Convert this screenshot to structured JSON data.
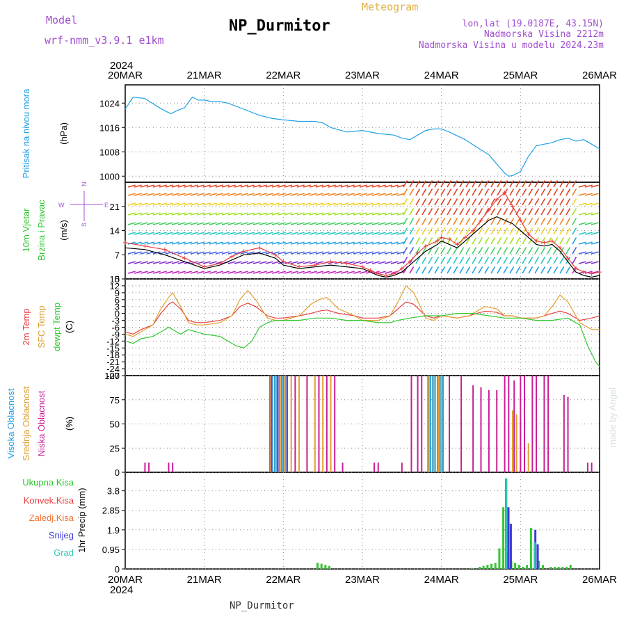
{
  "header": {
    "model_label": "Model",
    "model_name": "wrf-nmm_v3.9.1 e1km",
    "title": "NP_Durmitor",
    "product": "Meteogram",
    "lonlat": "lon,lat (19.0187E, 43.15N)",
    "elevation": "Nadmorska Visina 2212m",
    "model_elevation": "Nadmorska Visina u modelu 2024.23m"
  },
  "footer": {
    "station": "NP_Durmitor",
    "credit": "made by Angel"
  },
  "colors": {
    "pressure": "#1ea0e6",
    "temp2m": "#e84040",
    "sfc": "#e0a030",
    "dewpt": "#30c830",
    "high_cloud": "#1ea0e6",
    "mid_cloud": "#e0a030",
    "low_cloud": "#c81e96",
    "purple": "#a050d0",
    "total_precip": "#30c830",
    "conv_precip": "#e84040",
    "frozen_precip": "#f07030",
    "snow": "#3c3cd8",
    "hail": "#30c8b4",
    "wind_level_speed": "#000000",
    "wind_gust": "#e84040"
  },
  "chart_data": {
    "time_axis": {
      "year": "2024",
      "tick_labels": [
        "20MAR",
        "21MAR",
        "22MAR",
        "23MAR",
        "24MAR",
        "25MAR",
        "26MAR"
      ],
      "range_days": [
        0,
        6
      ]
    },
    "panels": [
      {
        "id": "pressure",
        "type": "line",
        "ylabel": "Pritisak na nivou mora",
        "unit": "(hPa)",
        "ylim": [
          998,
          1030
        ],
        "yticks": [
          "1000",
          "1008",
          "1016",
          "1024"
        ],
        "grid": true,
        "series": [
          {
            "name": "Pritisak na nivou mora",
            "x": [
              0,
              0.1,
              0.25,
              0.4,
              0.5,
              0.58,
              0.65,
              0.75,
              0.85,
              0.92,
              1.0,
              1.1,
              1.2,
              1.3,
              1.5,
              1.7,
              1.85,
              2.0,
              2.2,
              2.4,
              2.5,
              2.6,
              2.8,
              3.0,
              3.2,
              3.4,
              3.5,
              3.6,
              3.7,
              3.8,
              3.9,
              4.0,
              4.1,
              4.3,
              4.45,
              4.6,
              4.7,
              4.8,
              4.85,
              4.9,
              5.0,
              5.1,
              5.2,
              5.3,
              5.4,
              5.5,
              5.6,
              5.7,
              5.8,
              5.9,
              6.0
            ],
            "values": [
              1022,
              1026,
              1025.5,
              1023,
              1021.5,
              1020.5,
              1021.5,
              1022.5,
              1026,
              1025,
              1025,
              1024.5,
              1024.5,
              1024,
              1022,
              1020,
              1019,
              1018.5,
              1018,
              1018,
              1017.5,
              1016,
              1014.5,
              1015,
              1014,
              1013.5,
              1012.5,
              1012,
              1013.5,
              1015,
              1015.5,
              1015.5,
              1014.5,
              1012,
              1009.5,
              1007,
              1004,
              1001,
              1000,
              1000.2,
              1001.5,
              1006.5,
              1010,
              1010.5,
              1011,
              1012,
              1012.5,
              1011.5,
              1012,
              1010.5,
              1009
            ]
          }
        ]
      },
      {
        "id": "wind",
        "type": "line",
        "ylabel_1": "10m Vjetar",
        "ylabel_2": "Brzina i Pravac",
        "unit": "(m/s)",
        "compass_labels": [
          "N",
          "W",
          "E",
          "S"
        ],
        "ylim": [
          0,
          28
        ],
        "yticks": [
          "0",
          "7",
          "14",
          "21"
        ],
        "grid": true,
        "series": [
          {
            "x": [
              0,
              0.25,
              0.5,
              0.75,
              1.0,
              1.2,
              1.35,
              1.5,
              1.7,
              1.9,
              2.0,
              2.2,
              2.4,
              2.6,
              2.8,
              3.0,
              3.1,
              3.2,
              3.3,
              3.4,
              3.5,
              3.6,
              3.7,
              3.8,
              3.95,
              4.0,
              4.1,
              4.2,
              4.3,
              4.4,
              4.5,
              4.6,
              4.7,
              4.8,
              4.9,
              5.0,
              5.1,
              5.2,
              5.3,
              5.4,
              5.5,
              5.6,
              5.7,
              5.8,
              5.9,
              6.0
            ],
            "values": [
              9,
              8.5,
              7,
              5,
              3,
              4,
              5.5,
              7,
              7.5,
              6,
              4,
              3,
              3.5,
              4,
              3.5,
              3,
              2,
              1,
              0.5,
              1,
              2,
              4,
              6,
              8,
              10,
              11,
              10,
              9,
              11,
              13,
              15,
              17,
              18,
              17,
              16,
              14,
              12,
              10,
              9.5,
              10,
              8,
              5,
              2,
              1,
              0.5,
              1
            ]
          },
          {
            "x": [
              0,
              0.25,
              0.5,
              0.75,
              1.0,
              1.2,
              1.35,
              1.5,
              1.7,
              1.9,
              2.0,
              2.2,
              2.4,
              2.6,
              2.8,
              3.0,
              3.1,
              3.2,
              3.3,
              3.4,
              3.5,
              3.6,
              3.7,
              3.8,
              3.95,
              4.0,
              4.1,
              4.2,
              4.3,
              4.4,
              4.5,
              4.6,
              4.7,
              4.8,
              4.9,
              5.0,
              5.1,
              5.2,
              5.3,
              5.4,
              5.5,
              5.6,
              5.7,
              5.8,
              5.9,
              6.0
            ],
            "values": [
              10.5,
              9.5,
              8.5,
              6,
              3.5,
              4.5,
              6.5,
              8,
              9,
              7,
              5,
              3.5,
              4,
              5,
              4.5,
              3.5,
              2.5,
              1.5,
              1,
              1.5,
              3,
              5,
              7.5,
              9.5,
              11,
              12,
              11.5,
              10,
              12,
              14,
              17,
              20,
              23,
              25,
              21,
              17,
              13,
              11,
              10.5,
              11,
              9,
              6,
              3,
              2,
              1.5,
              2
            ]
          }
        ]
      },
      {
        "id": "temperature",
        "type": "line",
        "ylabel_1": "2m Temp",
        "ylabel_2": "SFC Temp",
        "ylabel_3": "dewpt Temp",
        "unit": "(C)",
        "ylim": [
          -27,
          15
        ],
        "yticks": [
          "15",
          "12",
          "9",
          "6",
          "3",
          "0",
          "-3",
          "-6",
          "-9",
          "-12",
          "-15",
          "-18",
          "-21",
          "-24",
          "-27"
        ],
        "grid": true,
        "series": [
          {
            "name": "2m Temp",
            "x": [
              0,
              0.1,
              0.2,
              0.35,
              0.45,
              0.55,
              0.6,
              0.7,
              0.8,
              0.9,
              1.0,
              1.2,
              1.35,
              1.45,
              1.55,
              1.65,
              1.8,
              1.9,
              2.0,
              2.2,
              2.35,
              2.45,
              2.55,
              2.7,
              2.9,
              3.0,
              3.2,
              3.35,
              3.45,
              3.55,
              3.65,
              3.8,
              3.9,
              4.0,
              4.2,
              4.35,
              4.45,
              4.55,
              4.7,
              4.8,
              4.9,
              5.0,
              5.2,
              5.3,
              5.4,
              5.5,
              5.6,
              5.75,
              5.9,
              6.0
            ],
            "values": [
              -8,
              -9,
              -7,
              -5,
              0,
              4,
              5,
              2,
              -3,
              -4,
              -4,
              -3,
              -1,
              3,
              4.5,
              3,
              -1,
              -2,
              -2,
              -1,
              0,
              1,
              1.5,
              0,
              -1,
              -2,
              -2,
              -1,
              2,
              5,
              4,
              -1,
              -2,
              -1,
              -2,
              -1,
              0,
              1,
              0.5,
              -1,
              -1,
              -2,
              -2,
              -1,
              0,
              1,
              0,
              -3,
              -2,
              -1
            ]
          },
          {
            "name": "SFC Temp",
            "x": [
              0,
              0.1,
              0.2,
              0.35,
              0.45,
              0.55,
              0.6,
              0.7,
              0.8,
              0.9,
              1.0,
              1.2,
              1.35,
              1.45,
              1.55,
              1.65,
              1.8,
              1.9,
              2.0,
              2.2,
              2.35,
              2.45,
              2.55,
              2.7,
              2.9,
              3.0,
              3.2,
              3.35,
              3.45,
              3.55,
              3.65,
              3.8,
              3.9,
              4.0,
              4.2,
              4.35,
              4.45,
              4.55,
              4.7,
              4.8,
              4.9,
              5.0,
              5.2,
              5.3,
              5.4,
              5.5,
              5.6,
              5.75,
              5.9,
              6.0
            ],
            "values": [
              -9,
              -10,
              -8,
              -5,
              2,
              7,
              9,
              3,
              -4,
              -5,
              -5,
              -4,
              -1,
              6,
              10,
              6,
              -2,
              -3,
              -3,
              -1,
              4,
              6,
              7,
              2,
              -1,
              -3,
              -3,
              -1,
              5,
              12,
              9,
              -2,
              -3,
              -1,
              -2,
              -1,
              1,
              3,
              2,
              -1,
              -1,
              -2,
              -2,
              -1,
              3,
              8,
              5,
              -4,
              -7,
              -7
            ]
          },
          {
            "name": "dewpt Temp",
            "x": [
              0,
              0.1,
              0.2,
              0.35,
              0.45,
              0.55,
              0.7,
              0.8,
              1.0,
              1.2,
              1.3,
              1.4,
              1.5,
              1.6,
              1.7,
              1.8,
              1.9,
              2.0,
              2.2,
              2.4,
              2.6,
              2.8,
              3.0,
              3.2,
              3.35,
              3.45,
              3.6,
              3.8,
              4.0,
              4.2,
              4.4,
              4.6,
              4.8,
              5.0,
              5.2,
              5.4,
              5.6,
              5.75,
              5.85,
              5.95,
              6.0
            ],
            "values": [
              -12,
              -13,
              -11,
              -10,
              -8,
              -6,
              -9,
              -7,
              -9,
              -10,
              -12,
              -14,
              -15,
              -12,
              -6,
              -4,
              -3,
              -3,
              -3,
              -2,
              -2,
              -3,
              -3,
              -4,
              -4,
              -3,
              -2,
              -1,
              -1,
              0,
              0,
              -1,
              -2,
              -2,
              -3,
              -3,
              -2,
              -5,
              -14,
              -21,
              -23
            ]
          }
        ]
      },
      {
        "id": "cloud",
        "type": "bar",
        "ylabel_1": "Visoka Oblacnost",
        "ylabel_2": "Srednja Oblacnost",
        "ylabel_3": "Niska Oblacnost",
        "unit": "(%)",
        "ylim": [
          0,
          100
        ],
        "yticks": [
          "0",
          "25",
          "50",
          "75",
          "100"
        ],
        "grid": true,
        "series": [
          {
            "name": "Visoka Oblacnost",
            "x": [
              1.83,
              1.86,
              1.89,
              1.92,
              1.95,
              1.98,
              2.0,
              2.03,
              3.83,
              3.86,
              3.89,
              3.92,
              3.95,
              3.98,
              4.0,
              4.02
            ],
            "values": [
              100,
              100,
              100,
              100,
              100,
              100,
              100,
              100,
              100,
              100,
              100,
              100,
              100,
              100,
              100,
              100
            ]
          },
          {
            "name": "Srednja Oblacnost",
            "x": [
              1.84,
              1.9,
              1.96,
              2.02,
              2.1,
              2.2,
              2.3,
              2.4,
              2.5,
              2.6,
              3.84,
              3.9,
              3.96,
              4.0,
              4.9,
              4.95,
              5.0,
              5.05,
              5.1
            ],
            "values": [
              100,
              100,
              100,
              100,
              100,
              100,
              100,
              100,
              100,
              100,
              100,
              100,
              100,
              100,
              64,
              60,
              55,
              40,
              30
            ]
          },
          {
            "name": "Niska Oblacnost",
            "x": [
              0.25,
              0.3,
              0.55,
              0.6,
              1.85,
              1.93,
              2.05,
              2.15,
              2.3,
              2.45,
              2.55,
              2.65,
              2.75,
              3.15,
              3.2,
              3.5,
              3.62,
              3.7,
              3.75,
              4.1,
              4.25,
              4.4,
              4.5,
              4.6,
              4.7,
              4.8,
              4.85,
              4.92,
              5.0,
              5.05,
              5.15,
              5.2,
              5.3,
              5.35,
              5.55,
              5.6,
              5.85,
              5.9
            ],
            "values": [
              10,
              10,
              10,
              10,
              100,
              100,
              100,
              100,
              100,
              100,
              100,
              100,
              10,
              10,
              10,
              10,
              100,
              100,
              100,
              100,
              100,
              90,
              88,
              85,
              85,
              100,
              100,
              95,
              100,
              100,
              100,
              100,
              100,
              100,
              80,
              78,
              10,
              10
            ]
          }
        ]
      },
      {
        "id": "precip",
        "type": "bar",
        "labels": [
          "Ukupna Kisa",
          "Konvek.Kisa",
          "Zaledj.Kisa",
          "Snijeg",
          "Grad"
        ],
        "ylabel": "1hr Precip (mm)",
        "ylim": [
          0,
          4.7
        ],
        "yticks": [
          "0",
          "0.95",
          "1.9",
          "2.85",
          "3.8"
        ],
        "grid": true,
        "series": [
          {
            "name": "Ukupna Kisa",
            "x": [
              2.45,
              2.5,
              2.55,
              2.6,
              4.4,
              4.5,
              4.55,
              4.6,
              4.65,
              4.7,
              4.75,
              4.8,
              4.85,
              4.9,
              4.95,
              5.0,
              5.05,
              5.1,
              5.15,
              5.2,
              5.25,
              5.3,
              5.4,
              5.45,
              5.5,
              5.55,
              5.6,
              5.65
            ],
            "values": [
              0.3,
              0.25,
              0.2,
              0.15,
              0.05,
              0.1,
              0.15,
              0.2,
              0.25,
              0.3,
              1.0,
              3.0,
              0.8,
              0.4,
              0.3,
              0.2,
              0.1,
              0.2,
              2.0,
              1.3,
              0.4,
              0.2,
              0.1,
              0.1,
              0.1,
              0.1,
              0.1,
              0.2
            ]
          },
          {
            "name": "Snijeg",
            "x": [
              4.8,
              4.83,
              4.86,
              5.17,
              5.2
            ],
            "values": [
              4.4,
              3.0,
              2.2,
              1.9,
              1.2
            ]
          },
          {
            "name": "Grad",
            "x": [
              4.82,
              5.18
            ],
            "values": [
              4.4,
              1.3
            ]
          }
        ]
      }
    ]
  }
}
